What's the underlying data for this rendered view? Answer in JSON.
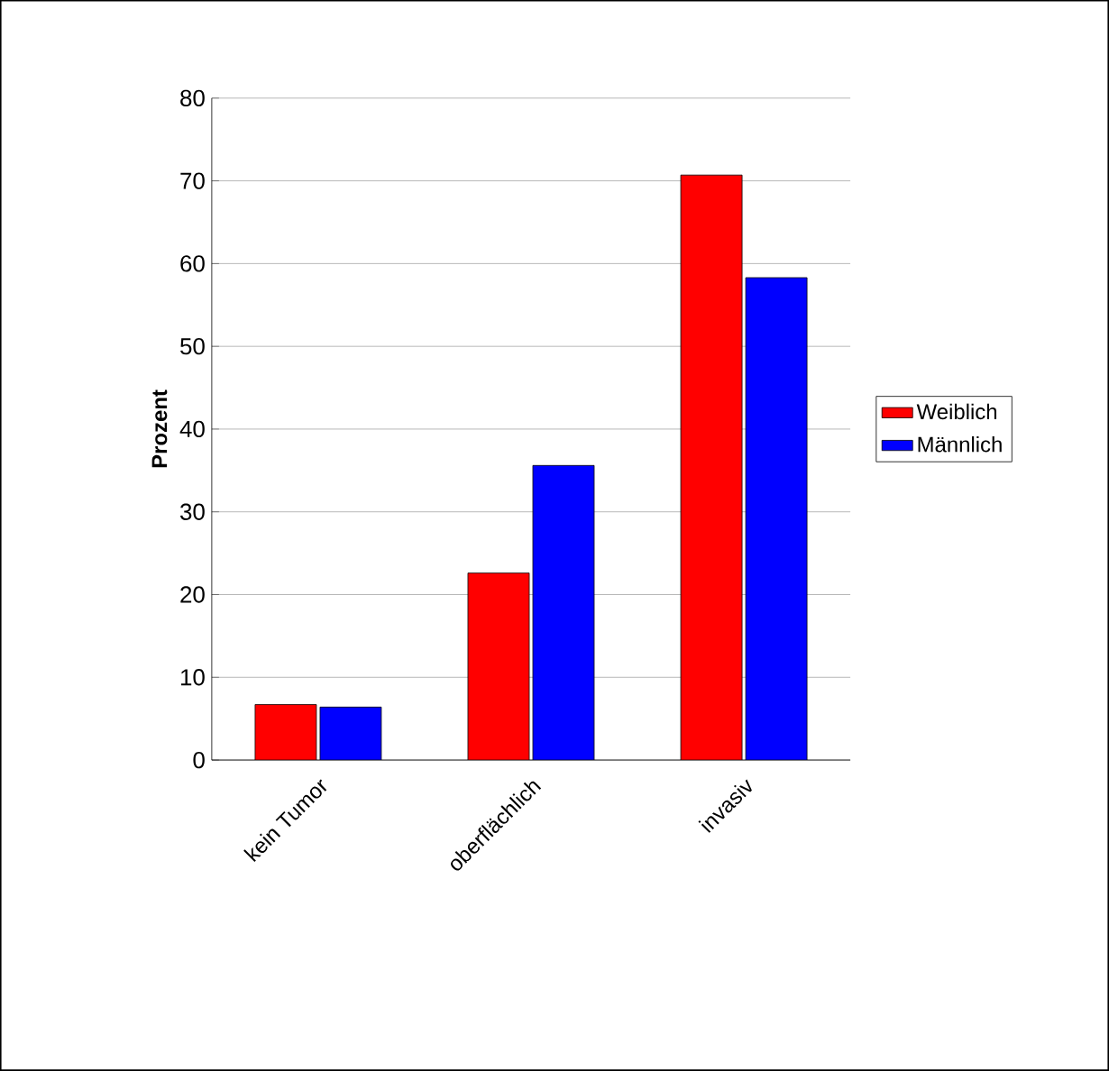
{
  "chart_data": {
    "type": "bar",
    "ylabel": "Prozent",
    "categories": [
      "kein Tumor",
      "oberflächlich",
      "invasiv"
    ],
    "series": [
      {
        "name": "Weiblich",
        "color": "#ff0000",
        "values": [
          6.7,
          22.6,
          70.7
        ]
      },
      {
        "name": "Männlich",
        "color": "#0000ff",
        "values": [
          6.4,
          35.6,
          58.3
        ]
      }
    ],
    "ylim": [
      0,
      80
    ],
    "yticks": [
      0,
      10,
      20,
      30,
      40,
      50,
      60,
      70,
      80
    ],
    "grid": "y",
    "legend": "right"
  }
}
